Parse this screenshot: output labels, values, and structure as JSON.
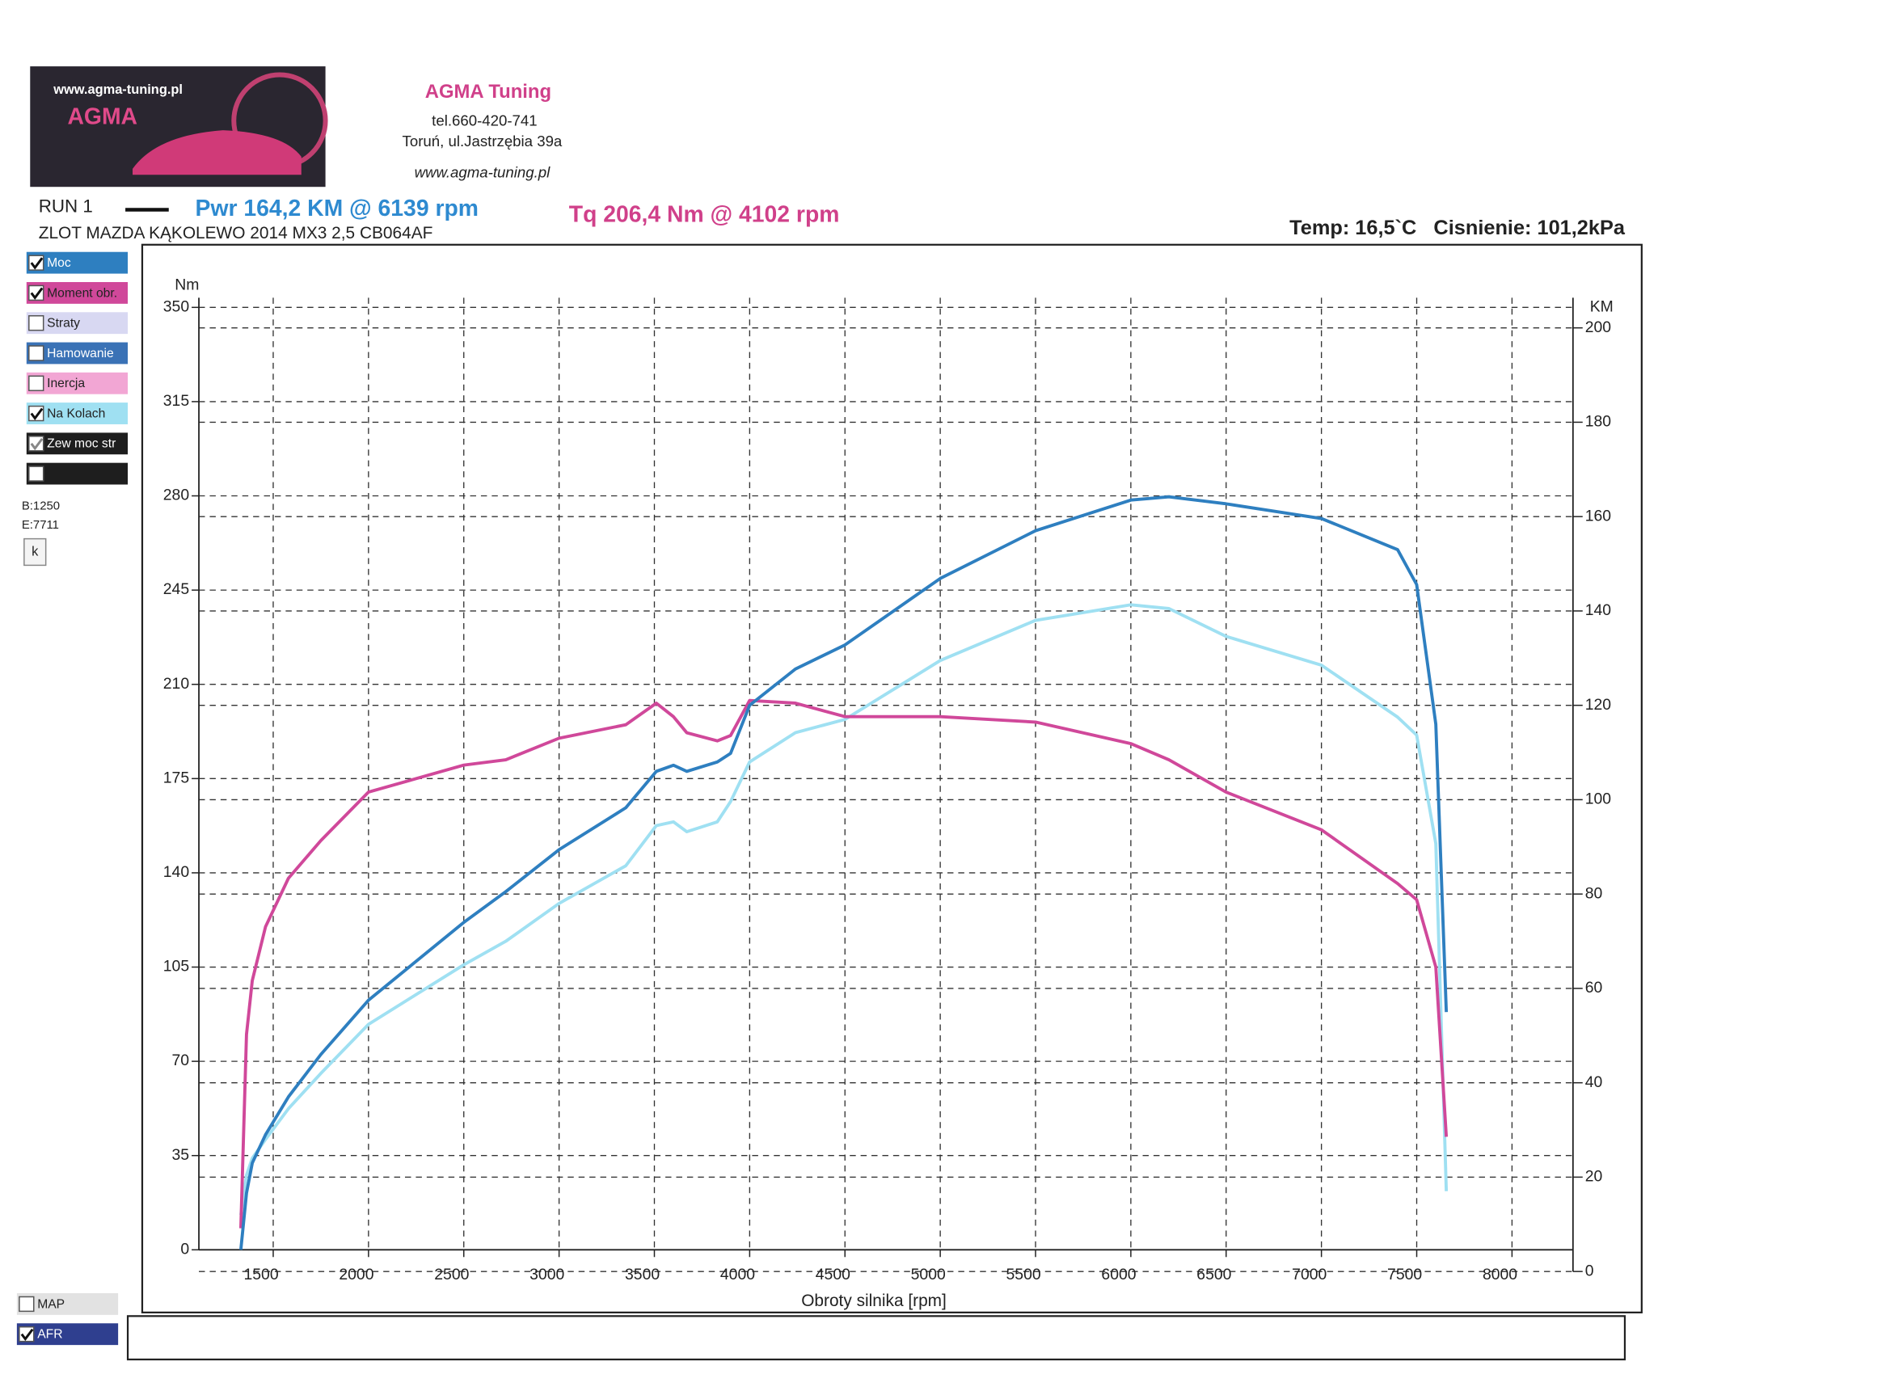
{
  "header": {
    "logo_url": "www.agma-tuning.pl",
    "logo_name": "AGMA",
    "brand": "AGMA Tuning",
    "phone": "tel.660-420-741",
    "address": "Toruń, ul.Jastrzębia 39a",
    "website": "www.agma-tuning.pl"
  },
  "run": {
    "name": "RUN 1",
    "pwr": "Pwr  164,2 KM @ 6139 rpm",
    "tq": "Tq 206,4 Nm @ 4102 rpm",
    "description": "ZLOT MAZDA KĄKOLEWO 2014 MX3 2,5 CB064AF",
    "conditions": "Temp: 16,5`C   Cisnienie: 101,2kPa"
  },
  "sidebar": {
    "channels": [
      {
        "label": "Straty",
        "checked": false,
        "color": "#d8d8f2"
      },
      {
        "label": "Hamowanie",
        "checked": false,
        "color": "#3a72b6"
      },
      {
        "label": "Inercja",
        "checked": false,
        "color": "#f2a6d4"
      },
      {
        "label": "Zew moc str",
        "checked": true,
        "color": "#1e1e1e"
      },
      {
        "checked": false,
        "color": "#1e1e1e"
      }
    ],
    "begin": "B:1250",
    "end": "E:7711",
    "button": "k",
    "bottom": [
      {
        "label": "MAP",
        "checked": false,
        "color": "#e2e2e2"
      },
      {
        "label": "AFR",
        "checked": true,
        "color": "#2f3f8f"
      }
    ]
  },
  "chart_data": {
    "type": "line",
    "x_label": "Obroty silnika [rpm]",
    "y_label": "Nm",
    "y2_label": "KM",
    "grid": true,
    "x": [
      1330,
      1360,
      1390,
      1460,
      1580,
      1750,
      2000,
      2500,
      2720,
      3000,
      3350,
      3510,
      3600,
      3670,
      3830,
      3900,
      4000,
      4240,
      4500,
      5000,
      5500,
      6000,
      6200,
      6500,
      7000,
      7400,
      7500,
      7600,
      7655
    ],
    "series": [
      {
        "name": "Moc",
        "color": "#2e7fc0",
        "axis": "y2",
        "checked": true,
        "values": [
          4.6,
          16.6,
          23,
          29,
          37,
          46,
          57.5,
          74,
          80.5,
          89.4,
          98.3,
          106,
          107.3,
          106,
          108,
          109.8,
          120,
          127.7,
          132.8,
          146.9,
          157,
          163.5,
          164.2,
          162.7,
          159.6,
          153,
          145.6,
          116,
          55
        ]
      },
      {
        "name": "Moment obr.",
        "color": "#d0489a",
        "axis": "y",
        "checked": true,
        "values": [
          8,
          80,
          100,
          120,
          138,
          152,
          170,
          180,
          182,
          190,
          195,
          203,
          198,
          192,
          189,
          191,
          204,
          203,
          198,
          198,
          196,
          188,
          182,
          170,
          156,
          136,
          130,
          105,
          42
        ]
      },
      {
        "name": "Na Kolach",
        "color": "#9fe0f2",
        "axis": "y2",
        "checked": true,
        "values": [
          12,
          20.4,
          24,
          28,
          34.5,
          42,
          52.4,
          65,
          70,
          78,
          86,
          94.5,
          95.3,
          93.2,
          95.3,
          99.6,
          108,
          114.2,
          117,
          129.5,
          138,
          141.3,
          140.5,
          134.6,
          128.5,
          117.5,
          113.7,
          90.7,
          17
        ]
      }
    ],
    "xlim": [
      1110,
      8320
    ],
    "xticks": [
      1500,
      2000,
      2500,
      3000,
      3500,
      4000,
      4500,
      5000,
      5500,
      6000,
      6500,
      7000,
      7500,
      8000
    ],
    "ylim": [
      0,
      350
    ],
    "yticks": [
      0,
      35,
      70,
      105,
      140,
      175,
      210,
      245,
      280,
      315,
      350
    ],
    "y2lim": [
      0,
      200
    ],
    "y2ticks": [
      0,
      20,
      40,
      60,
      80,
      100,
      120,
      140,
      160,
      180,
      200
    ]
  }
}
